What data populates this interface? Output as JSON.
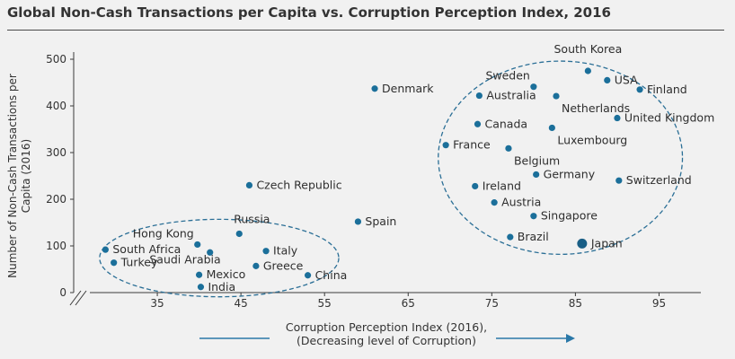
{
  "chart_data": {
    "type": "scatter",
    "title": "Global Non-Cash Transactions per Capita vs. Corruption Perception Index, 2016",
    "xlabel": [
      "Corruption Perception Index (2016),",
      "(Decreasing level of Corruption)"
    ],
    "ylabel": [
      "Number of Non-Cash Transactions per",
      "Capita (2016)"
    ],
    "xlim": [
      25,
      100
    ],
    "ylim": [
      0,
      500
    ],
    "xticks": [
      35,
      45,
      55,
      65,
      75,
      85,
      95
    ],
    "yticks": [
      0,
      100,
      200,
      300,
      400,
      500
    ],
    "grid": false,
    "point_color": "#1b6f9a",
    "highlight_color": "#1a5f86",
    "points": [
      {
        "name": "South Korea",
        "x": 86.5,
        "y": 475
      },
      {
        "name": "USA",
        "x": 88.8,
        "y": 455
      },
      {
        "name": "Finland",
        "x": 92.7,
        "y": 435
      },
      {
        "name": "Sweden",
        "x": 80.0,
        "y": 441
      },
      {
        "name": "Australia",
        "x": 73.5,
        "y": 422
      },
      {
        "name": "Netherlands",
        "x": 82.7,
        "y": 421
      },
      {
        "name": "United Kingdom",
        "x": 90.0,
        "y": 374
      },
      {
        "name": "Canada",
        "x": 73.3,
        "y": 361
      },
      {
        "name": "Luxembourg",
        "x": 82.2,
        "y": 353
      },
      {
        "name": "France",
        "x": 69.5,
        "y": 316
      },
      {
        "name": "Belgium",
        "x": 77.0,
        "y": 309
      },
      {
        "name": "Germany",
        "x": 80.3,
        "y": 253
      },
      {
        "name": "Switzerland",
        "x": 90.2,
        "y": 240
      },
      {
        "name": "Ireland",
        "x": 73.0,
        "y": 228
      },
      {
        "name": "Austria",
        "x": 75.3,
        "y": 193
      },
      {
        "name": "Singapore",
        "x": 80.0,
        "y": 164
      },
      {
        "name": "Brazil",
        "x": 77.2,
        "y": 119
      },
      {
        "name": "Japan",
        "x": 85.8,
        "y": 105,
        "highlight": true
      },
      {
        "name": "Denmark",
        "x": 61.0,
        "y": 437
      },
      {
        "name": "Czech Republic",
        "x": 46.0,
        "y": 230
      },
      {
        "name": "Spain",
        "x": 59.0,
        "y": 152
      },
      {
        "name": "Russia",
        "x": 44.8,
        "y": 126
      },
      {
        "name": "Hong Kong",
        "x": 39.8,
        "y": 103
      },
      {
        "name": "South Africa",
        "x": 28.8,
        "y": 92
      },
      {
        "name": "Italy",
        "x": 48.0,
        "y": 89
      },
      {
        "name": "Saudi Arabia",
        "x": 41.3,
        "y": 86
      },
      {
        "name": "Turkey",
        "x": 29.8,
        "y": 64
      },
      {
        "name": "Greece",
        "x": 46.8,
        "y": 57
      },
      {
        "name": "Mexico",
        "x": 40.0,
        "y": 38
      },
      {
        "name": "China",
        "x": 53.0,
        "y": 37
      },
      {
        "name": "India",
        "x": 40.2,
        "y": 12
      }
    ],
    "clusters": [
      {
        "name": "low-cpi-cluster",
        "cx": 42.4,
        "cy": 74,
        "rx": 14.3,
        "ry": 83
      },
      {
        "name": "high-cpi-cluster",
        "cx": 83.2,
        "cy": 289,
        "rx": 14.6,
        "ry": 207
      }
    ]
  }
}
